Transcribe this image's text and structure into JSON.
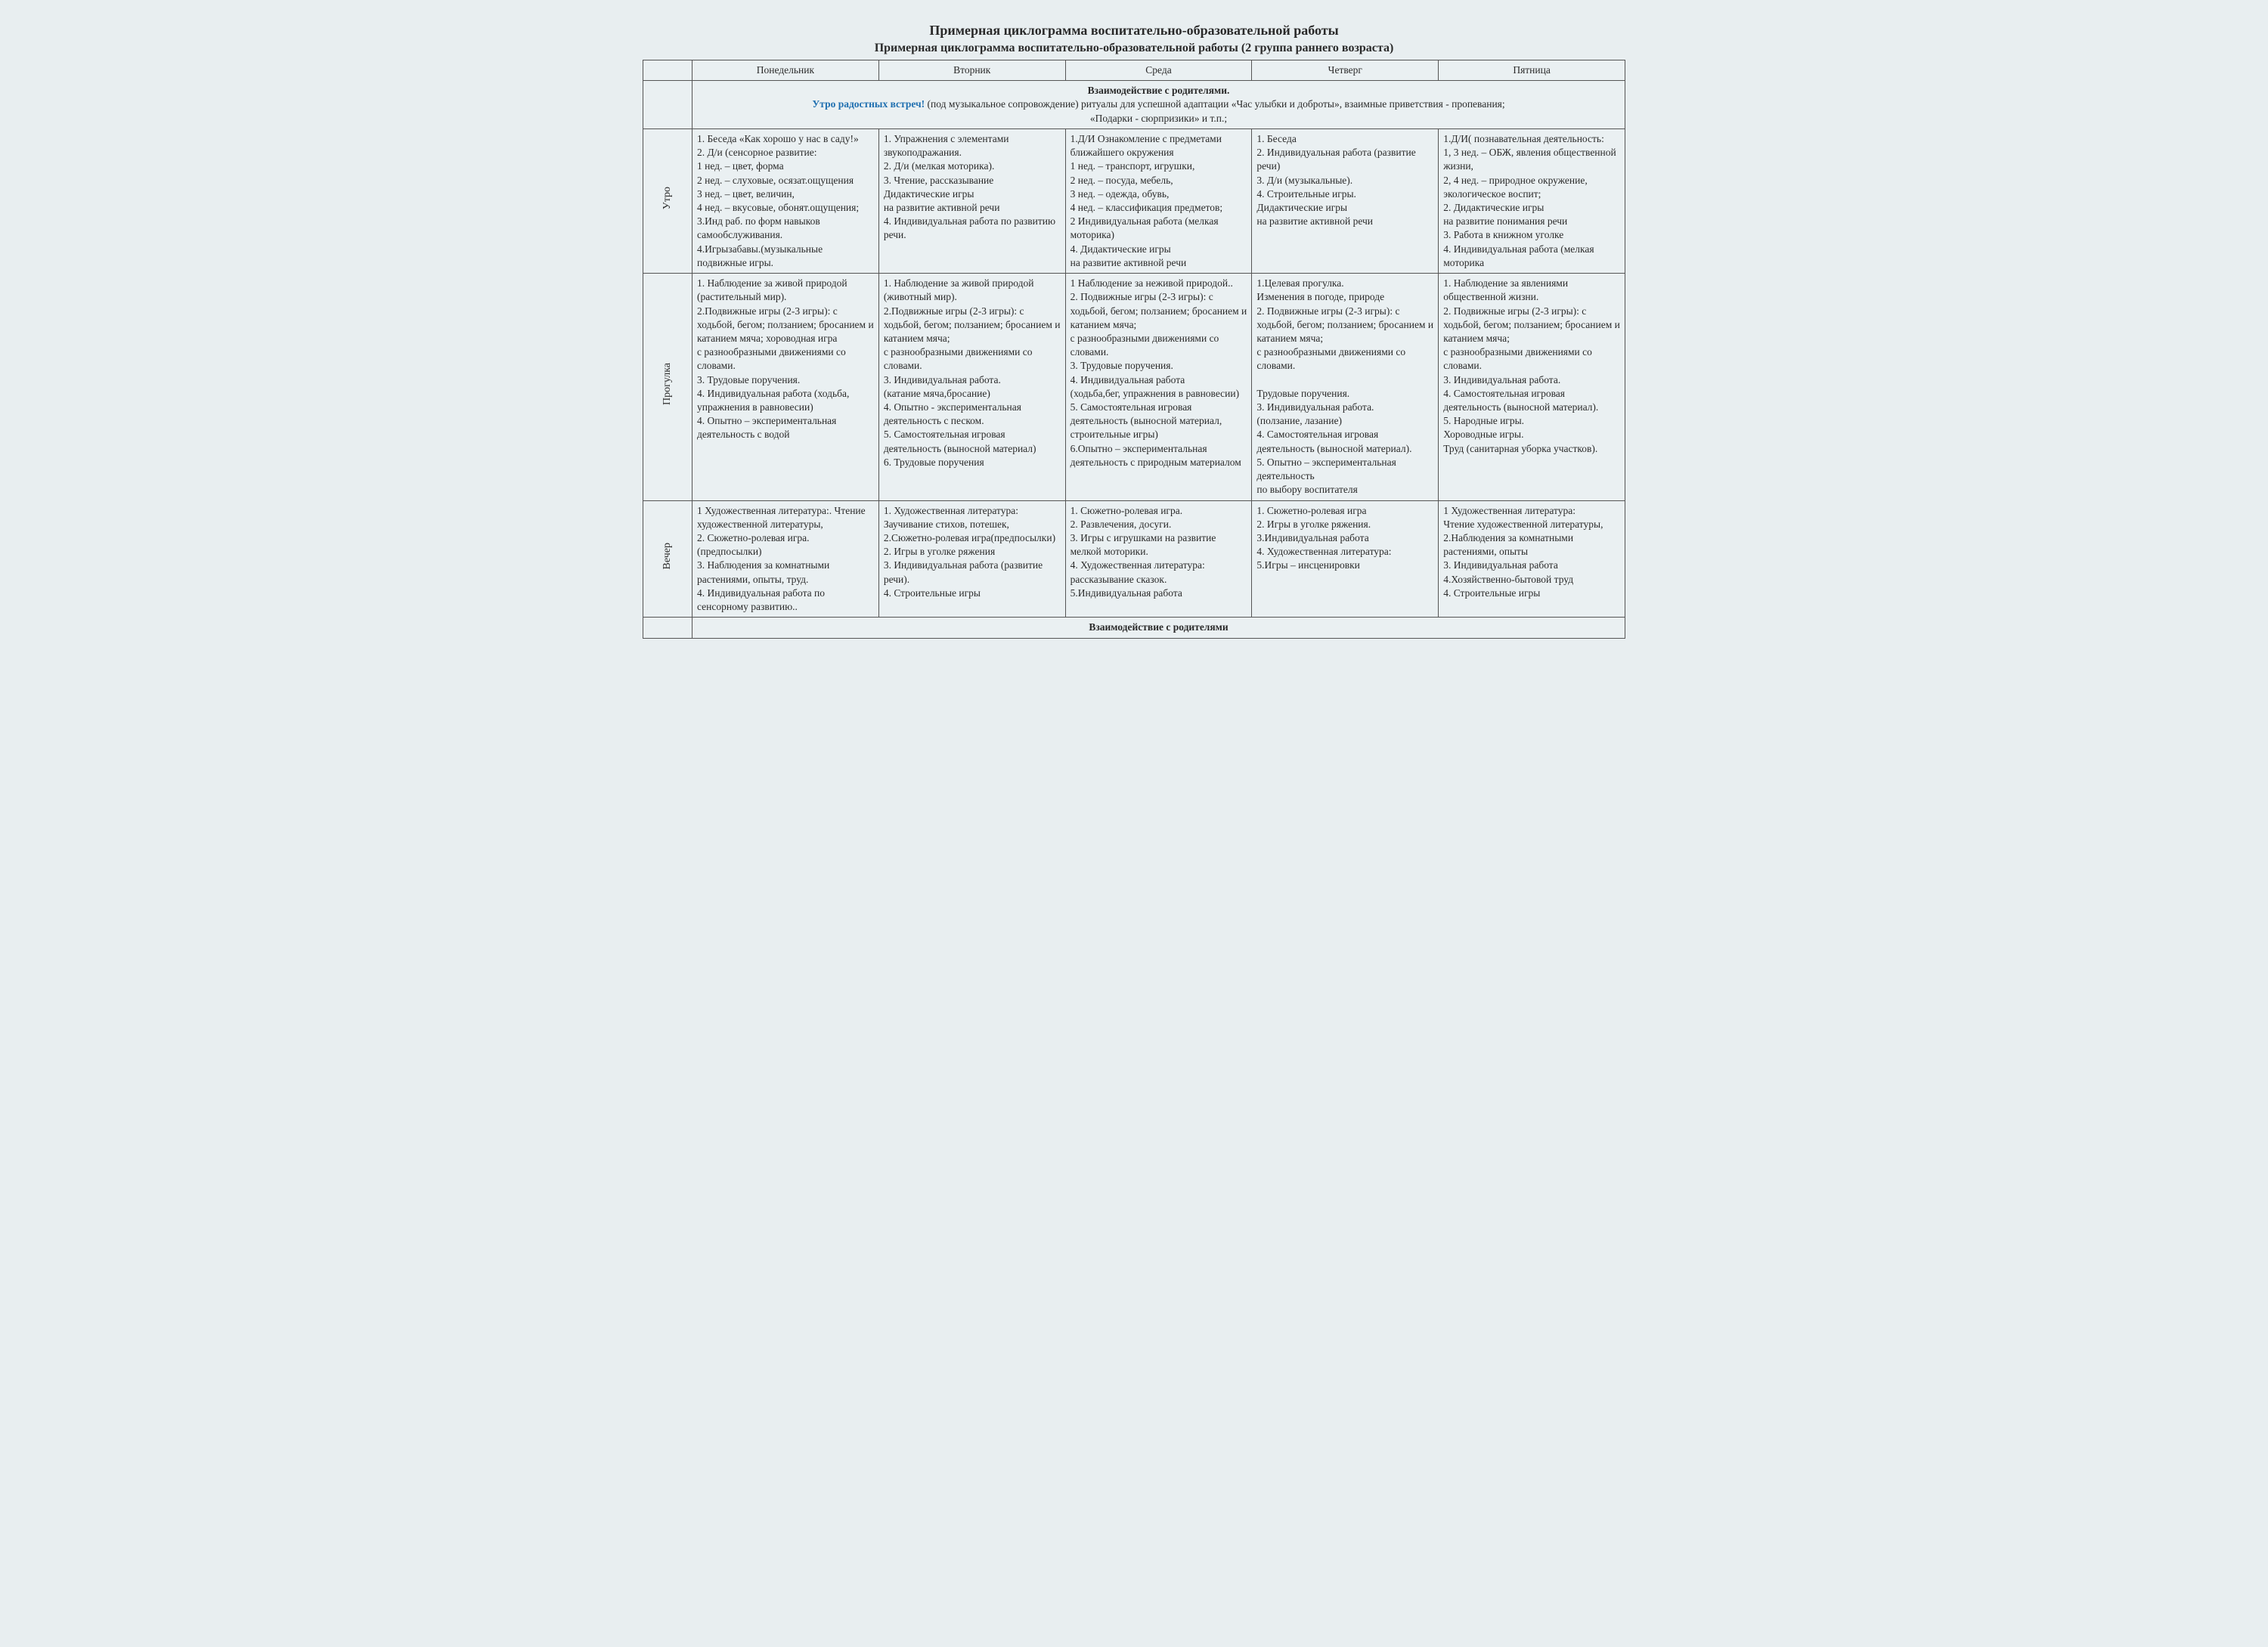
{
  "title_main": "Примерная циклограмма воспитательно-образовательной работы",
  "title_sub": "Примерная циклограмма воспитательно-образовательной работы (2 группа раннего возраста)",
  "days": [
    "Понедельник",
    "Вторник",
    "Среда",
    "Четверг",
    "Пятница"
  ],
  "intro": {
    "line1": "Взаимодействие с родителями.",
    "accent": "Утро радостных встреч!",
    "line2_rest": " (под музыкальное сопровождение) ритуалы для успешной адаптации «Час улыбки и доброты», взаимные приветствия - пропевания;",
    "line3": "«Подарки - сюрпризики» и т.п.;"
  },
  "rows": {
    "utro": {
      "label": "Утро",
      "mon": "1. Беседа «Как хорошо у нас в саду!»\n2. Д/и (сенсорное развитие:\n1 нед. – цвет, форма\n2 нед. – слуховые, осязат.ощущения\n3 нед. – цвет, величин,\n4 нед. – вкусовые, обонят.ощущения;\n3.Инд раб. по форм навыков самообслуживания.\n4.Игрызабавы.(музыкальные подвижные игры.",
      "tue": "1. Упражнения с элементами звукоподражания.\n2. Д/и (мелкая моторика).\n3. Чтение, рассказывание Дидактические игры\nна развитие активной речи\n4. Индивидуальная работа по развитию речи.",
      "wed": "1.Д/И Ознакомление с предметами ближайшего окружения\n 1 нед. – транспорт, игрушки,\n 2 нед. – посуда, мебель,\n 3 нед. – одежда, обувь,\n 4 нед. – классификация предметов;\n2 Индивидуальная работа (мелкая моторика)\n4. Дидактические игры\nна развитие активной речи",
      "thu": "1. Беседа\n2. Индивидуальная работа (развитие речи)\n3. Д/и (музыкальные).\n4. Строительные игры.\nДидактические игры\nна развитие активной речи",
      "fri": "1.Д/И( познавательная деятельность:\n1, 3 нед. – ОБЖ, явления общественной жизни,\n 2, 4 нед. – природное окружение, экологическое воспит;\n2. Дидактические игры\nна развитие понимания речи\n3. Работа в книжном уголке\n4. Индивидуальная работа (мелкая моторика"
    },
    "progulka": {
      "label": "Прогулка",
      "mon": "1. Наблюдение за живой природой (растительный мир).\n2.Подвижные игры (2-3 игры): с ходьбой, бегом; ползанием; бросанием и катанием мяча; хороводная игра\nс разнообразными движениями со словами.\n3. Трудовые поручения.\n4. Индивидуальная работа (ходьба, упражнения в равновесии)\n4. Опытно – экспериментальная деятельность с водой",
      "tue": "1. Наблюдение за живой природой (животный мир).\n2.Подвижные игры (2-3 игры): с ходьбой, бегом; ползанием; бросанием и катанием мяча;\nс разнообразными движениями со словами.\n3. Индивидуальная работа.\n   (катание мяча,бросание)\n4. Опытно - экспериментальная деятельность с песком.\n5. Самостоятельная игровая деятельность (выносной материал)\n6. Трудовые поручения",
      "wed": "1 Наблюдение за неживой природой..\n2. Подвижные игры (2-3 игры): с ходьбой, бегом; ползанием; бросанием и катанием мяча;\nс разнообразными движениями со словами.\n3. Трудовые поручения.\n4. Индивидуальная работа\n(ходьба,бег, упражнения в равновесии)\n5. Самостоятельная игровая деятельность (выносной материал, строительные игры)\n6.Опытно – экспериментальная деятельность с природным материалом",
      "thu": "1.Целевая прогулка.\nИзменения в погоде, природе\n2. Подвижные игры (2-3 игры): с ходьбой, бегом; ползанием; бросанием и катанием мяча;\nс разнообразными движениями со словами.\n\nТрудовые поручения.\n3. Индивидуальная работа.\n(ползание, лазание)\n4. Самостоятельная игровая деятельность (выносной материал).\n5. Опытно – экспериментальная деятельность\nпо выбору воспитателя",
      "fri": "1. Наблюдение за явлениями общественной жизни.\n2. Подвижные игры (2-3 игры): с ходьбой, бегом; ползанием; бросанием и катанием мяча;\nс разнообразными движениями со словами.\n3. Индивидуальная работа.\n4. Самостоятельная игровая деятельность (выносной материал).\n5. Народные игры.\nХороводные игры.\nТруд (санитарная уборка участков)."
    },
    "vecher": {
      "label": "Вечер",
      "mon": "1 Художественная литература:. Чтение художественной литературы,\n2. Сюжетно-ролевая игра.(предпосылки)\n3. Наблюдения за комнатными растениями, опыты, труд.\n4. Индивидуальная работа по сенсорному развитию..",
      "tue": "1. Художественная литература:\nЗаучивание стихов, потешек,\n2.Сюжетно-ролевая игра(предпосылки)\n2. Игры в уголке ряжения\n3. Индивидуальная работа (развитие речи).\n4. Строительные игры",
      "wed": "1. Сюжетно-ролевая игра.\n2. Развлечения, досуги.\n3. Игры с игрушками на развитие мелкой моторики.\n4. Художественная литература: рассказывание сказок.\n5.Индивидуальная работа",
      "thu": "1. Сюжетно-ролевая игра\n2. Игры в уголке ряжения.\n3.Индивидуальная работа\n4. Художественная литература:\n5.Игры – инсценировки",
      "fri": "1 Художественная литература:\n Чтение художественной литературы,\n2.Наблюдения за комнатными растениями, опыты\n3. Индивидуальная работа\n4.Хозяйственно-бытовой труд\n4. Строительные игры"
    }
  },
  "footer": "Взаимодействие с родителями",
  "style": {
    "type": "table",
    "columns": 6,
    "background_color": "#eaf0f2",
    "page_background": "#e8eef0",
    "border_color": "#555555",
    "accent_color": "#1f6fb0",
    "text_color": "#2a2a2a",
    "font_family": "Times New Roman",
    "title_fontsize": 18,
    "subtitle_fontsize": 16,
    "body_fontsize": 13.5,
    "row_label_orientation": "vertical"
  }
}
